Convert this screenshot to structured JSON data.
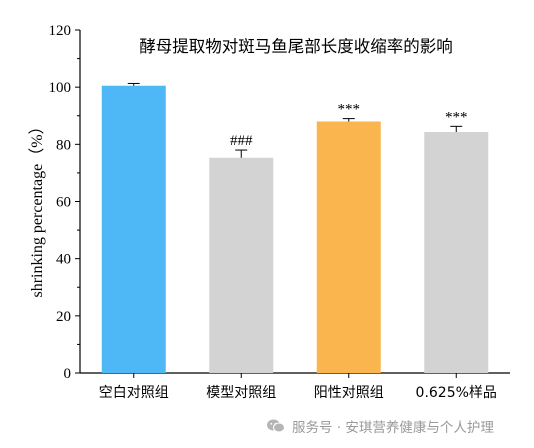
{
  "chart_data": {
    "type": "bar",
    "title": "酵母提取物对斑马鱼尾部长度收缩率的影响",
    "ylabel": "shrinking percentage（%）",
    "xlabel": "",
    "ylim": [
      0,
      120
    ],
    "yticks": [
      0,
      20,
      40,
      60,
      80,
      100,
      120
    ],
    "categories": [
      "空白对照组",
      "模型对照组",
      "阳性对照组",
      "0.625%样品"
    ],
    "values": [
      100.5,
      75.3,
      88.0,
      84.3
    ],
    "errors": [
      0.8,
      2.7,
      1.0,
      2.0
    ],
    "significance": [
      "",
      "###",
      "***",
      "***"
    ],
    "colors": [
      "#4DB8F5",
      "#D3D3D3",
      "#FBB54F",
      "#D3D3D3"
    ],
    "grid": false
  },
  "watermark": {
    "text": "服务号 · 安琪营养健康与个人护理",
    "icon": "wechat-icon"
  }
}
